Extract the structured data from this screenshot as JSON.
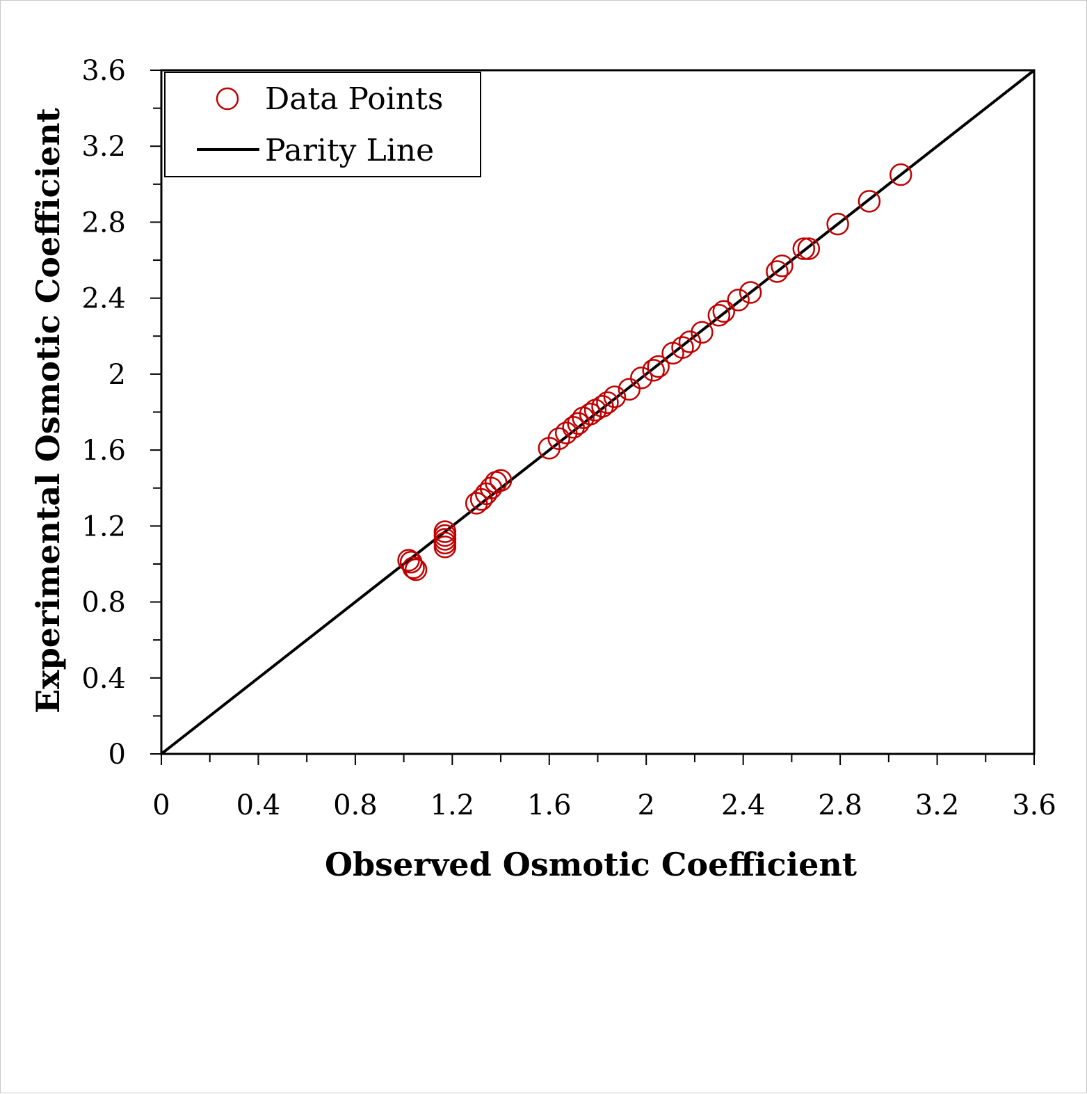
{
  "chart_data": {
    "type": "scatter",
    "xlabel": "Observed Osmotic Coefficient",
    "ylabel": "Experimental Osmotic Coefficient",
    "xlim": [
      0,
      3.6
    ],
    "ylim": [
      0,
      3.6
    ],
    "x_ticks": [
      "0",
      "0.4",
      "0.8",
      "1.2",
      "1.6",
      "2",
      "2.4",
      "2.8",
      "3.2",
      "3.6"
    ],
    "y_ticks": [
      "0",
      "0.4",
      "0.8",
      "1.2",
      "1.6",
      "2",
      "2.4",
      "2.8",
      "3.2",
      "3.6"
    ],
    "grid": false,
    "legend_position": "top-left",
    "series": [
      {
        "name": "Data Points",
        "kind": "scatter",
        "marker": "open-circle",
        "color": "#c00000",
        "points": [
          [
            1.02,
            1.02
          ],
          [
            1.03,
            1.01
          ],
          [
            1.04,
            0.98
          ],
          [
            1.05,
            0.97
          ],
          [
            1.17,
            1.09
          ],
          [
            1.17,
            1.11
          ],
          [
            1.17,
            1.13
          ],
          [
            1.17,
            1.15
          ],
          [
            1.17,
            1.17
          ],
          [
            1.3,
            1.32
          ],
          [
            1.32,
            1.34
          ],
          [
            1.34,
            1.37
          ],
          [
            1.36,
            1.4
          ],
          [
            1.38,
            1.43
          ],
          [
            1.4,
            1.44
          ],
          [
            1.6,
            1.61
          ],
          [
            1.64,
            1.66
          ],
          [
            1.67,
            1.69
          ],
          [
            1.7,
            1.72
          ],
          [
            1.72,
            1.74
          ],
          [
            1.74,
            1.77
          ],
          [
            1.77,
            1.79
          ],
          [
            1.79,
            1.81
          ],
          [
            1.82,
            1.83
          ],
          [
            1.84,
            1.85
          ],
          [
            1.87,
            1.88
          ],
          [
            1.93,
            1.92
          ],
          [
            1.98,
            1.98
          ],
          [
            2.03,
            2.02
          ],
          [
            2.05,
            2.04
          ],
          [
            2.11,
            2.11
          ],
          [
            2.15,
            2.14
          ],
          [
            2.18,
            2.17
          ],
          [
            2.23,
            2.22
          ],
          [
            2.3,
            2.31
          ],
          [
            2.32,
            2.33
          ],
          [
            2.38,
            2.39
          ],
          [
            2.43,
            2.43
          ],
          [
            2.54,
            2.54
          ],
          [
            2.56,
            2.57
          ],
          [
            2.65,
            2.66
          ],
          [
            2.67,
            2.66
          ],
          [
            2.79,
            2.79
          ],
          [
            2.92,
            2.91
          ],
          [
            3.05,
            3.05
          ]
        ]
      },
      {
        "name": "Parity Line",
        "kind": "line",
        "color": "#000000",
        "points": [
          [
            0,
            0
          ],
          [
            3.6,
            3.6
          ]
        ]
      }
    ]
  }
}
